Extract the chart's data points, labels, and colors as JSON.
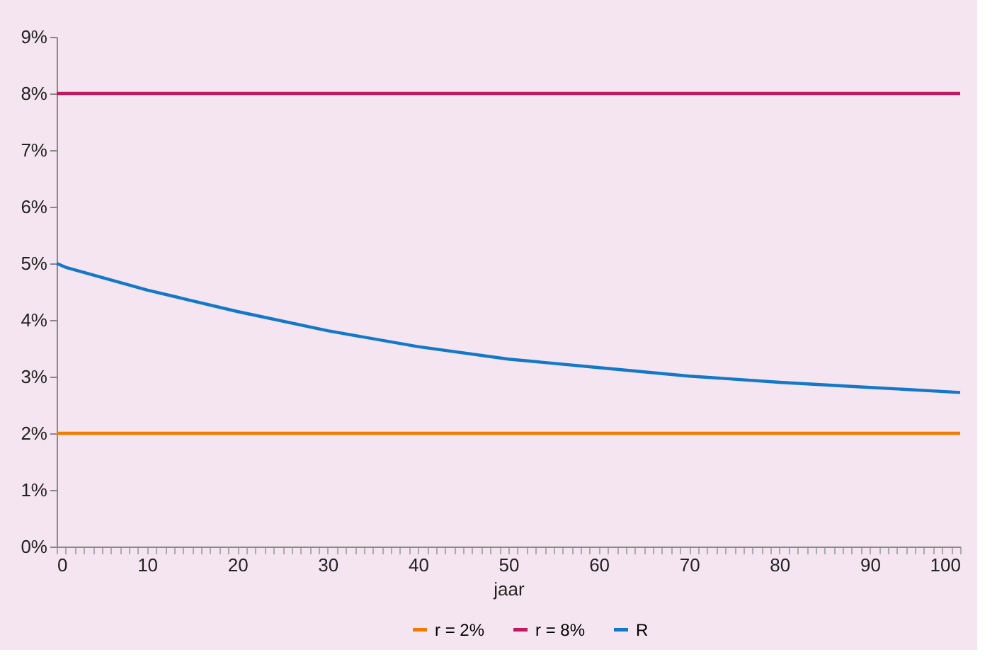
{
  "chart_data": {
    "type": "line",
    "xlabel": "jaar",
    "xlim": [
      0,
      100
    ],
    "ylim": [
      0,
      9
    ],
    "xticks": [
      0,
      {
        "value": 1,
        "label": null
      },
      {
        "value": 2,
        "label": null
      },
      {
        "value": 3,
        "label": null
      },
      {
        "value": 4,
        "label": null
      },
      {
        "value": 5,
        "label": null
      },
      {
        "value": 6,
        "label": null
      },
      {
        "value": 7,
        "label": null
      },
      {
        "value": 8,
        "label": null
      },
      {
        "value": 9,
        "label": null
      },
      10,
      {
        "value": 11,
        "label": null
      },
      {
        "value": 12,
        "label": null
      },
      {
        "value": 13,
        "label": null
      },
      {
        "value": 14,
        "label": null
      },
      {
        "value": 15,
        "label": null
      },
      {
        "value": 16,
        "label": null
      },
      {
        "value": 17,
        "label": null
      },
      {
        "value": 18,
        "label": null
      },
      {
        "value": 19,
        "label": null
      },
      20,
      {
        "value": 21,
        "label": null
      },
      {
        "value": 22,
        "label": null
      },
      {
        "value": 23,
        "label": null
      },
      {
        "value": 24,
        "label": null
      },
      {
        "value": 25,
        "label": null
      },
      {
        "value": 26,
        "label": null
      },
      {
        "value": 27,
        "label": null
      },
      {
        "value": 28,
        "label": null
      },
      {
        "value": 29,
        "label": null
      },
      30,
      {
        "value": 31,
        "label": null
      },
      {
        "value": 32,
        "label": null
      },
      {
        "value": 33,
        "label": null
      },
      {
        "value": 34,
        "label": null
      },
      {
        "value": 35,
        "label": null
      },
      {
        "value": 36,
        "label": null
      },
      {
        "value": 37,
        "label": null
      },
      {
        "value": 38,
        "label": null
      },
      {
        "value": 39,
        "label": null
      },
      40,
      {
        "value": 41,
        "label": null
      },
      {
        "value": 42,
        "label": null
      },
      {
        "value": 43,
        "label": null
      },
      {
        "value": 44,
        "label": null
      },
      {
        "value": 45,
        "label": null
      },
      {
        "value": 46,
        "label": null
      },
      {
        "value": 47,
        "label": null
      },
      {
        "value": 48,
        "label": null
      },
      {
        "value": 49,
        "label": null
      },
      50,
      {
        "value": 51,
        "label": null
      },
      {
        "value": 52,
        "label": null
      },
      {
        "value": 53,
        "label": null
      },
      {
        "value": 54,
        "label": null
      },
      {
        "value": 55,
        "label": null
      },
      {
        "value": 56,
        "label": null
      },
      {
        "value": 57,
        "label": null
      },
      {
        "value": 58,
        "label": null
      },
      {
        "value": 59,
        "label": null
      },
      60,
      {
        "value": 61,
        "label": null
      },
      {
        "value": 62,
        "label": null
      },
      {
        "value": 63,
        "label": null
      },
      {
        "value": 64,
        "label": null
      },
      {
        "value": 65,
        "label": null
      },
      {
        "value": 66,
        "label": null
      },
      {
        "value": 67,
        "label": null
      },
      {
        "value": 68,
        "label": null
      },
      {
        "value": 69,
        "label": null
      },
      70,
      {
        "value": 71,
        "label": null
      },
      {
        "value": 72,
        "label": null
      },
      {
        "value": 73,
        "label": null
      },
      {
        "value": 74,
        "label": null
      },
      {
        "value": 75,
        "label": null
      },
      {
        "value": 76,
        "label": null
      },
      {
        "value": 77,
        "label": null
      },
      {
        "value": 78,
        "label": null
      },
      {
        "value": 79,
        "label": null
      },
      80,
      {
        "value": 81,
        "label": null
      },
      {
        "value": 82,
        "label": null
      },
      {
        "value": 83,
        "label": null
      },
      {
        "value": 84,
        "label": null
      },
      {
        "value": 85,
        "label": null
      },
      {
        "value": 86,
        "label": null
      },
      {
        "value": 87,
        "label": null
      },
      {
        "value": 88,
        "label": null
      },
      {
        "value": 89,
        "label": null
      },
      90,
      {
        "value": 91,
        "label": null
      },
      {
        "value": 92,
        "label": null
      },
      {
        "value": 93,
        "label": null
      },
      {
        "value": 94,
        "label": null
      },
      {
        "value": 95,
        "label": null
      },
      {
        "value": 96,
        "label": null
      },
      {
        "value": 97,
        "label": null
      },
      {
        "value": 98,
        "label": null
      },
      {
        "value": 99,
        "label": null
      },
      100
    ],
    "yticks": [
      {
        "value": 0,
        "label": "0%"
      },
      {
        "value": 1,
        "label": "1%"
      },
      {
        "value": 2,
        "label": "2%"
      },
      {
        "value": 3,
        "label": "3%"
      },
      {
        "value": 4,
        "label": "4%"
      },
      {
        "value": 5,
        "label": "5%"
      },
      {
        "value": 6,
        "label": "6%"
      },
      {
        "value": 7,
        "label": "7%"
      },
      {
        "value": 8,
        "label": "8%"
      },
      {
        "value": 9,
        "label": "9%"
      }
    ],
    "grid": false,
    "legend": "bottom",
    "marker": "none",
    "line_style": "solid",
    "series": [
      {
        "name": "r = 2%",
        "color": "#f07c00",
        "x": [
          0,
          100
        ],
        "values": [
          2,
          2
        ]
      },
      {
        "name": "r = 8%",
        "color": "#c0195f",
        "x": [
          0,
          100
        ],
        "values": [
          8,
          8
        ]
      },
      {
        "name": "R",
        "color": "#1478c8",
        "x": [
          0,
          1,
          10,
          20,
          30,
          40,
          50,
          60,
          70,
          80,
          90,
          100
        ],
        "values": [
          5.0,
          4.93,
          4.53,
          4.15,
          3.81,
          3.53,
          3.31,
          3.16,
          3.01,
          2.9,
          2.81,
          2.72
        ]
      }
    ]
  }
}
